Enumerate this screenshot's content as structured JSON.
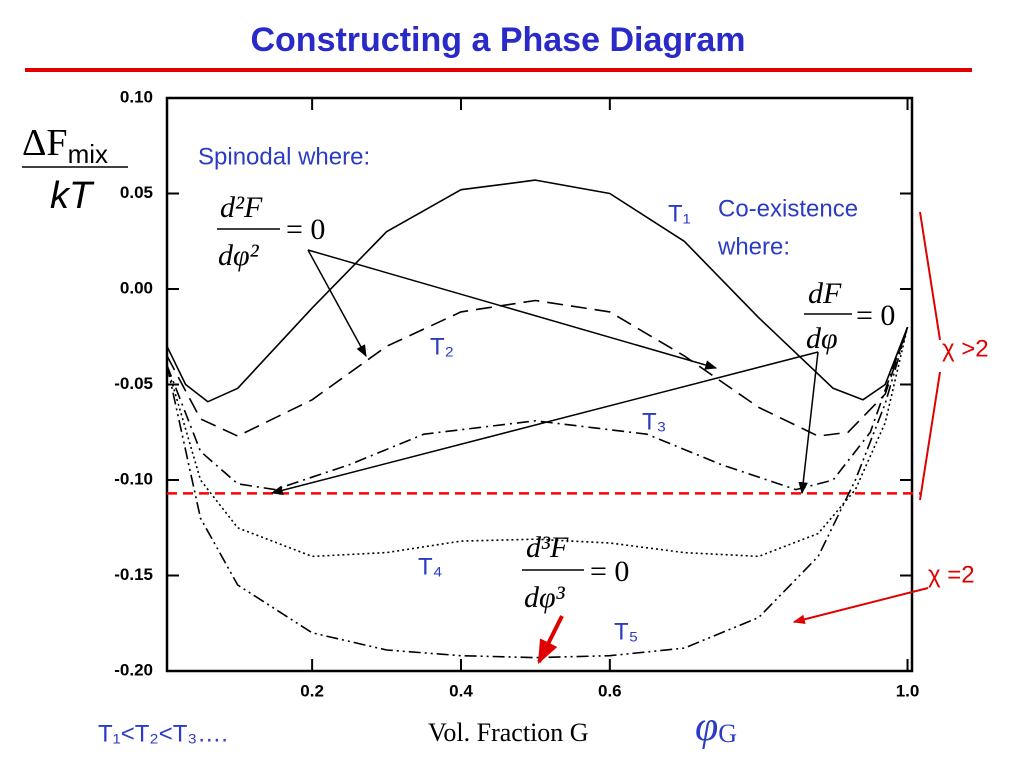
{
  "header": {
    "title": "Constructing a Phase Diagram"
  },
  "chart_data": {
    "type": "line",
    "y_label": {
      "numerator": "ΔF",
      "numerator_sub": "mix",
      "denominator": "kT"
    },
    "x_label": "Vol. Fraction G",
    "x_symbol": {
      "base": "φ",
      "sub": "G"
    },
    "xlim": [
      0.005,
      1.006
    ],
    "xticks": [
      0.2,
      0.4,
      0.6,
      {
        "value": 1,
        "label": "1.0"
      }
    ],
    "ylim": [
      -0.2,
      0.1
    ],
    "yticks": [
      {
        "value": 0.1,
        "label": "0.10"
      },
      {
        "value": 0.05,
        "label": "0.05"
      },
      {
        "value": 0,
        "label": "0.00"
      },
      {
        "value": -0.05,
        "label": "-0.05"
      },
      {
        "value": -0.1,
        "label": "-0.10"
      },
      {
        "value": -0.15,
        "label": "-0.15"
      },
      {
        "value": -0.2,
        "label": "-0.20"
      }
    ],
    "series": [
      {
        "name": "T₁",
        "color": "#000000",
        "style": "solid",
        "x": [
          0.005,
          0.03,
          0.06,
          0.1,
          0.2,
          0.3,
          0.4,
          0.5,
          0.6,
          0.7,
          0.8,
          0.9,
          0.94,
          0.97,
          1.0
        ],
        "values": [
          -0.03,
          -0.05,
          -0.059,
          -0.052,
          -0.01,
          0.03,
          0.052,
          0.057,
          0.05,
          0.025,
          -0.015,
          -0.052,
          -0.058,
          -0.05,
          -0.02
        ]
      },
      {
        "name": "T₂",
        "color": "#000000",
        "style": "dashed",
        "x": [
          0.005,
          0.05,
          0.1,
          0.2,
          0.3,
          0.4,
          0.5,
          0.6,
          0.7,
          0.8,
          0.88,
          0.92,
          0.97,
          1.0
        ],
        "values": [
          -0.035,
          -0.068,
          -0.077,
          -0.058,
          -0.03,
          -0.012,
          -0.006,
          -0.012,
          -0.035,
          -0.062,
          -0.077,
          -0.075,
          -0.055,
          -0.02
        ]
      },
      {
        "name": "T₃",
        "color": "#000000",
        "style": "dashdot",
        "x": [
          0.005,
          0.05,
          0.1,
          0.15,
          0.25,
          0.35,
          0.5,
          0.65,
          0.75,
          0.85,
          0.9,
          0.95,
          1.0
        ],
        "values": [
          -0.04,
          -0.085,
          -0.102,
          -0.105,
          -0.092,
          -0.076,
          -0.069,
          -0.076,
          -0.092,
          -0.105,
          -0.1,
          -0.075,
          -0.02
        ]
      },
      {
        "name": "T₄",
        "color": "#000000",
        "style": "dotted",
        "x": [
          0.005,
          0.05,
          0.1,
          0.2,
          0.3,
          0.4,
          0.5,
          0.6,
          0.7,
          0.8,
          0.88,
          0.93,
          0.97,
          1.0
        ],
        "values": [
          -0.04,
          -0.1,
          -0.125,
          -0.14,
          -0.138,
          -0.132,
          -0.131,
          -0.133,
          -0.138,
          -0.14,
          -0.128,
          -0.105,
          -0.07,
          -0.02
        ]
      },
      {
        "name": "T₅",
        "color": "#000000",
        "style": "dashdotdot",
        "x": [
          0.005,
          0.05,
          0.1,
          0.2,
          0.3,
          0.4,
          0.5,
          0.6,
          0.7,
          0.8,
          0.88,
          0.93,
          0.97,
          1.0
        ],
        "values": [
          -0.04,
          -0.12,
          -0.155,
          -0.18,
          -0.189,
          -0.192,
          -0.193,
          -0.192,
          -0.188,
          -0.172,
          -0.14,
          -0.1,
          -0.06,
          -0.02
        ]
      }
    ],
    "coexistence_line": {
      "value": -0.107,
      "color": "#ff0000"
    },
    "annotations": {
      "spinodal": "Spinodal where:",
      "spinodal_formula": {
        "num": "d²F",
        "den": "dφ²",
        "rhs": "= 0"
      },
      "coexistence_1": "Co-existence",
      "coexistence_2": "where:",
      "coexistence_formula": {
        "num": "dF",
        "den": "dφ",
        "rhs": "= 0"
      },
      "critical_formula": {
        "num": "d³F",
        "den": "dφ³",
        "rhs": "= 0"
      },
      "chi_gt": "χ >2",
      "chi_eq": "χ =2",
      "order": "T₁<T₂<T₃…."
    }
  }
}
